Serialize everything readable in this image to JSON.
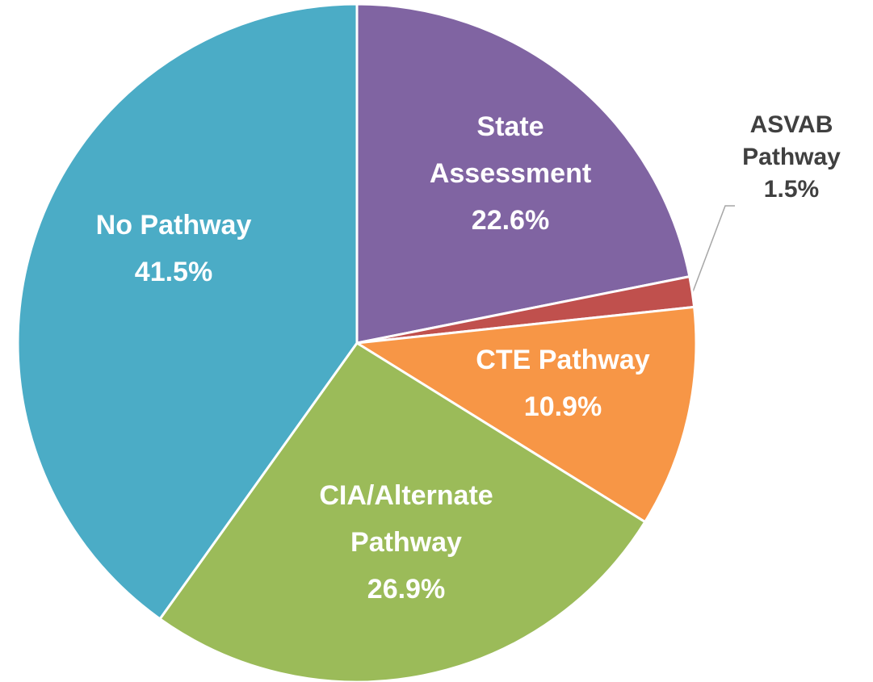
{
  "chart_data": {
    "type": "pie",
    "categories": [
      "State Assessment",
      "ASVAB Pathway",
      "CTE Pathway",
      "CIA/Alternate Pathway",
      "No Pathway"
    ],
    "values": [
      22.6,
      1.5,
      10.9,
      26.9,
      41.5
    ],
    "value_labels": [
      "22.6%",
      "1.5%",
      "10.9%",
      "26.9%",
      "41.5%"
    ],
    "colors": [
      "#8064a2",
      "#c0504d",
      "#f79646",
      "#9bbb59",
      "#4bacc6"
    ]
  }
}
